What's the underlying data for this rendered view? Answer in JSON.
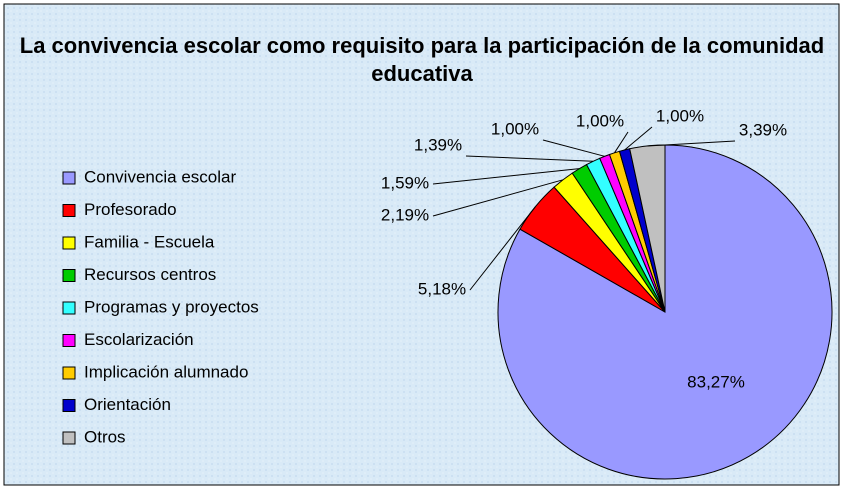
{
  "chart_data": {
    "type": "pie",
    "title": "La convivencia escolar como requisito para la participación de la comunidad educativa",
    "categories": [
      "Convivencia escolar",
      "Profesorado",
      "Familia - Escuela",
      "Recursos centros",
      "Programas y proyectos",
      "Escolarización",
      "Implicación alumnado",
      "Orientación",
      "Otros"
    ],
    "values": [
      83.27,
      5.18,
      2.19,
      1.59,
      1.39,
      1.0,
      1.0,
      1.0,
      3.39
    ],
    "value_labels": [
      "83,27%",
      "5,18%",
      "2,19%",
      "1,59%",
      "1,39%",
      "1,00%",
      "1,00%",
      "1,00%",
      "3,39%"
    ],
    "colors": [
      "#9999ff",
      "#ff0000",
      "#ffff00",
      "#00cc00",
      "#33ffff",
      "#ff00ff",
      "#ffcc00",
      "#0000cc",
      "#c0c0c0"
    ],
    "legend": "left"
  }
}
